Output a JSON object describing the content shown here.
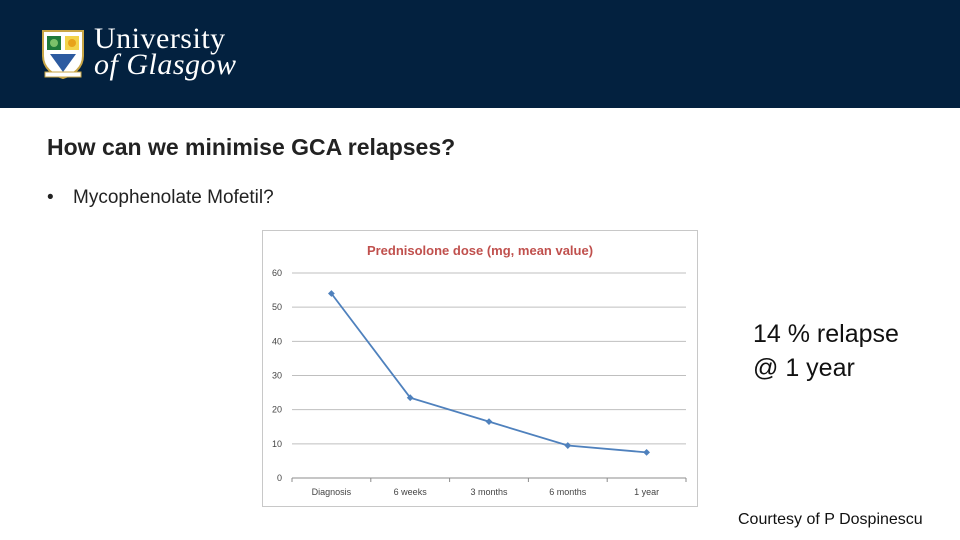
{
  "header": {
    "logo_line1": "University",
    "logo_line2": "of Glasgow",
    "background_color": "#03213f"
  },
  "slide": {
    "title": "How can we minimise GCA relapses?",
    "bullets": [
      "Mycophenolate Mofetil?"
    ],
    "relapse_line1": "14 % relapse",
    "relapse_line2": "@ 1 year",
    "courtesy": "Courtesy of P Dospinescu"
  },
  "chart_data": {
    "type": "line",
    "title": "Prednisolone dose (mg, mean value)",
    "categories": [
      "Diagnosis",
      "6 weeks",
      "3 months",
      "6 months",
      "1 year"
    ],
    "series": [
      {
        "values": [
          54,
          23.5,
          16.5,
          9.5,
          7.5
        ],
        "color": "#4f81bd"
      }
    ],
    "ylim": [
      0,
      60
    ],
    "yticks": [
      0,
      10,
      20,
      30,
      40,
      50,
      60
    ],
    "grid": true,
    "title_color": "#c0504d"
  }
}
